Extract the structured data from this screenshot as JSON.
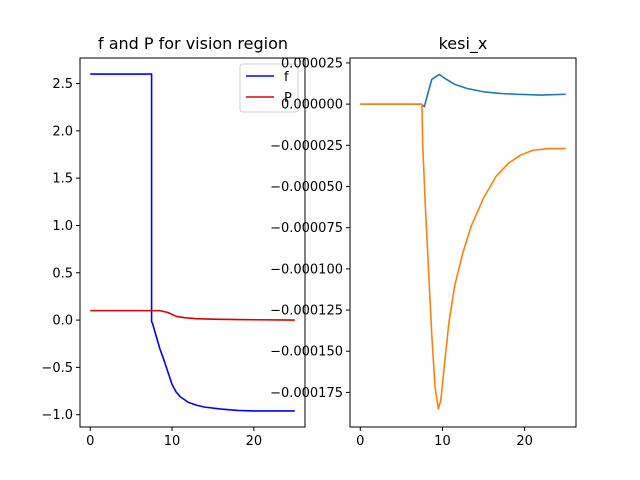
{
  "chart_data": [
    {
      "type": "line",
      "title": "f and P for vision region",
      "xlabel": "",
      "ylabel": "",
      "xlim": [
        -1.25,
        26.25
      ],
      "ylim": [
        -1.13,
        2.77
      ],
      "xticks": [
        0,
        10,
        20
      ],
      "xtick_labels": [
        "0",
        "10",
        "20"
      ],
      "yticks": [
        -1.0,
        -0.5,
        0.0,
        0.5,
        1.0,
        1.5,
        2.0,
        2.5
      ],
      "ytick_labels": [
        "−1.0",
        "−0.5",
        "0.0",
        "0.5",
        "1.0",
        "1.5",
        "2.0",
        "2.5"
      ],
      "grid": false,
      "legend": "top-right",
      "series": [
        {
          "name": "f",
          "color": "#0000ff",
          "points": [
            [
              0,
              2.6
            ],
            [
              7.5,
              2.6
            ],
            [
              7.5,
              -0.02
            ],
            [
              7.6,
              -0.03
            ],
            [
              8.0,
              -0.15
            ],
            [
              8.5,
              -0.3
            ],
            [
              9.0,
              -0.42
            ],
            [
              9.5,
              -0.55
            ],
            [
              10.0,
              -0.68
            ],
            [
              10.5,
              -0.76
            ],
            [
              11.0,
              -0.81
            ],
            [
              12.0,
              -0.87
            ],
            [
              13.0,
              -0.9
            ],
            [
              14.0,
              -0.92
            ],
            [
              16.0,
              -0.94
            ],
            [
              18.0,
              -0.955
            ],
            [
              20.0,
              -0.96
            ],
            [
              22.0,
              -0.96
            ],
            [
              25.0,
              -0.96
            ]
          ]
        },
        {
          "name": "P",
          "color": "#dd0000",
          "points": [
            [
              0,
              0.1
            ],
            [
              7.5,
              0.1
            ],
            [
              8.5,
              0.1
            ],
            [
              9.5,
              0.08
            ],
            [
              10.5,
              0.04
            ],
            [
              11.5,
              0.025
            ],
            [
              13.0,
              0.015
            ],
            [
              15.0,
              0.01
            ],
            [
              18.0,
              0.005
            ],
            [
              25.0,
              0.0
            ]
          ]
        }
      ]
    },
    {
      "type": "line",
      "title": "kesi_x",
      "xlabel": "",
      "ylabel": "",
      "xlim": [
        -1.25,
        26.25
      ],
      "ylim": [
        -0.000196,
        2.8e-05
      ],
      "xticks": [
        0,
        10,
        20
      ],
      "xtick_labels": [
        "0",
        "10",
        "20"
      ],
      "yticks": [
        2.5e-05,
        0.0,
        -2.5e-05,
        -5e-05,
        -7.5e-05,
        -0.0001,
        -0.000125,
        -0.00015,
        -0.000175
      ],
      "ytick_labels": [
        "0.000025",
        "0.000000",
        "−0.000025",
        "−0.000050",
        "−0.000075",
        "−0.000100",
        "−0.000125",
        "−0.000150",
        "−0.000175"
      ],
      "grid": false,
      "legend": "none",
      "series": [
        {
          "color": "#1f77b4",
          "points": [
            [
              0,
              0
            ],
            [
              7.4,
              0
            ],
            [
              7.8,
              -1.5e-06
            ],
            [
              8.2,
              6e-06
            ],
            [
              8.7,
              1.5e-05
            ],
            [
              9.6,
              1.8e-05
            ],
            [
              10.5,
              1.5e-05
            ],
            [
              11.5,
              1.2e-05
            ],
            [
              13.0,
              9.5e-06
            ],
            [
              15.0,
              7.5e-06
            ],
            [
              17.0,
              6.5e-06
            ],
            [
              19.0,
              6e-06
            ],
            [
              22.0,
              5.5e-06
            ],
            [
              25.0,
              6e-06
            ]
          ]
        },
        {
          "color": "#ff7f0e",
          "points": [
            [
              0,
              0
            ],
            [
              7.5,
              0
            ],
            [
              7.6,
              -2.5e-05
            ],
            [
              7.9,
              -6e-05
            ],
            [
              8.3,
              -0.0001
            ],
            [
              8.7,
              -0.00014
            ],
            [
              9.1,
              -0.000172
            ],
            [
              9.5,
              -0.000185
            ],
            [
              9.8,
              -0.00018
            ],
            [
              10.2,
              -0.00016
            ],
            [
              10.8,
              -0.000132
            ],
            [
              11.5,
              -0.00011
            ],
            [
              12.5,
              -9e-05
            ],
            [
              13.5,
              -7.4e-05
            ],
            [
              15.0,
              -5.7e-05
            ],
            [
              16.5,
              -4.4e-05
            ],
            [
              18.0,
              -3.6e-05
            ],
            [
              19.5,
              -3.1e-05
            ],
            [
              21.0,
              -2.8e-05
            ],
            [
              23.0,
              -2.7e-05
            ],
            [
              25.0,
              -2.7e-05
            ]
          ]
        }
      ]
    }
  ]
}
